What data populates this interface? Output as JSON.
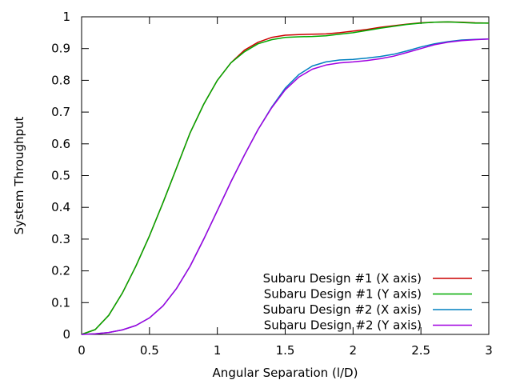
{
  "chart_data": {
    "type": "line",
    "title": "",
    "xlabel": "Angular Separation (l/D)",
    "ylabel": "System Throughput",
    "xlim": [
      0,
      3
    ],
    "ylim": [
      0,
      1
    ],
    "xticks": [
      0,
      0.5,
      1,
      1.5,
      2,
      2.5,
      3
    ],
    "xtick_labels": [
      "0",
      "0.5",
      "1",
      "1.5",
      "2",
      "2.5",
      "3"
    ],
    "yticks": [
      0,
      0.1,
      0.2,
      0.3,
      0.4,
      0.5,
      0.6,
      0.7,
      0.8,
      0.9,
      1
    ],
    "ytick_labels": [
      "0",
      "0.1",
      "0.2",
      "0.3",
      "0.4",
      "0.5",
      "0.6",
      "0.7",
      "0.8",
      "0.9",
      "1"
    ],
    "grid": false,
    "legend_position": "bottom-right",
    "series": [
      {
        "name": "Subaru Design #1 (X axis)",
        "color": "#cc0000",
        "x": [
          0,
          0.1,
          0.2,
          0.3,
          0.4,
          0.5,
          0.6,
          0.7,
          0.8,
          0.9,
          1.0,
          1.1,
          1.2,
          1.3,
          1.4,
          1.5,
          1.6,
          1.7,
          1.8,
          1.9,
          2.0,
          2.1,
          2.2,
          2.3,
          2.4,
          2.5,
          2.6,
          2.7,
          2.8,
          2.9,
          3.0
        ],
        "y": [
          0,
          0.015,
          0.06,
          0.13,
          0.215,
          0.31,
          0.415,
          0.525,
          0.635,
          0.725,
          0.8,
          0.855,
          0.895,
          0.92,
          0.935,
          0.942,
          0.944,
          0.945,
          0.946,
          0.95,
          0.955,
          0.96,
          0.967,
          0.972,
          0.977,
          0.981,
          0.983,
          0.984,
          0.983,
          0.981,
          0.98
        ]
      },
      {
        "name": "Subaru Design #1 (Y axis)",
        "color": "#00aa00",
        "x": [
          0,
          0.1,
          0.2,
          0.3,
          0.4,
          0.5,
          0.6,
          0.7,
          0.8,
          0.9,
          1.0,
          1.1,
          1.2,
          1.3,
          1.4,
          1.5,
          1.6,
          1.7,
          1.8,
          1.9,
          2.0,
          2.1,
          2.2,
          2.3,
          2.4,
          2.5,
          2.6,
          2.7,
          2.8,
          2.9,
          3.0
        ],
        "y": [
          0,
          0.015,
          0.06,
          0.13,
          0.215,
          0.31,
          0.415,
          0.525,
          0.635,
          0.725,
          0.8,
          0.855,
          0.89,
          0.915,
          0.928,
          0.935,
          0.937,
          0.938,
          0.94,
          0.945,
          0.95,
          0.957,
          0.964,
          0.97,
          0.976,
          0.98,
          0.983,
          0.984,
          0.982,
          0.98,
          0.98
        ]
      },
      {
        "name": "Subaru Design #2 (X axis)",
        "color": "#0080c0",
        "x": [
          0,
          0.1,
          0.2,
          0.3,
          0.4,
          0.5,
          0.6,
          0.7,
          0.8,
          0.9,
          1.0,
          1.1,
          1.2,
          1.3,
          1.4,
          1.5,
          1.6,
          1.7,
          1.8,
          1.9,
          2.0,
          2.1,
          2.2,
          2.3,
          2.4,
          2.5,
          2.6,
          2.7,
          2.8,
          2.9,
          3.0
        ],
        "y": [
          0,
          0.002,
          0.006,
          0.014,
          0.028,
          0.052,
          0.09,
          0.145,
          0.215,
          0.3,
          0.39,
          0.48,
          0.565,
          0.645,
          0.715,
          0.775,
          0.818,
          0.845,
          0.858,
          0.864,
          0.866,
          0.87,
          0.875,
          0.882,
          0.893,
          0.905,
          0.915,
          0.922,
          0.927,
          0.929,
          0.93
        ]
      },
      {
        "name": "Subaru Design #2 (Y axis)",
        "color": "#a000e0",
        "x": [
          0,
          0.1,
          0.2,
          0.3,
          0.4,
          0.5,
          0.6,
          0.7,
          0.8,
          0.9,
          1.0,
          1.1,
          1.2,
          1.3,
          1.4,
          1.5,
          1.6,
          1.7,
          1.8,
          1.9,
          2.0,
          2.1,
          2.2,
          2.3,
          2.4,
          2.5,
          2.6,
          2.7,
          2.8,
          2.9,
          3.0
        ],
        "y": [
          0,
          0.002,
          0.006,
          0.014,
          0.028,
          0.052,
          0.09,
          0.145,
          0.215,
          0.3,
          0.39,
          0.48,
          0.565,
          0.645,
          0.713,
          0.77,
          0.81,
          0.835,
          0.848,
          0.855,
          0.858,
          0.862,
          0.868,
          0.876,
          0.888,
          0.9,
          0.912,
          0.92,
          0.925,
          0.928,
          0.93
        ]
      }
    ]
  }
}
